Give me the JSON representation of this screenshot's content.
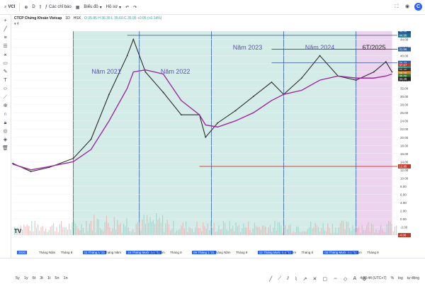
{
  "toolbar": {
    "symbol": "VCI",
    "interval": "D",
    "indicators": "Các chỉ báo",
    "layout_menu": "Biểu đồ",
    "alert_menu": "Hồ sơ"
  },
  "legend": {
    "name": "CTCP Chứng Khoán Vietcap",
    "interval": "1D",
    "exchange": "HSX",
    "ohlc": "O 35.95 H 36.35 L 35.60 C 35.95 +0.05 (+0.14%)",
    "count": "4"
  },
  "bottombar": {
    "ranges": [
      "5y",
      "1y",
      "6t",
      "3t",
      "1t",
      "5n",
      "1n"
    ],
    "time": "4:50:44 (UTC+7)",
    "mode": "%",
    "log": "log",
    "auto": "tự động"
  },
  "chart_data": {
    "type": "line",
    "title": "CTCP Chứng Khoán Vietcap · 1D · HSX",
    "x": [
      "2020-03",
      "2020-06",
      "2020-09",
      "2021-01",
      "2021-04",
      "2021-07",
      "2021-10",
      "2021-11",
      "2022-01",
      "2022-04",
      "2022-07",
      "2022-10",
      "2022-11",
      "2023-01",
      "2023-04",
      "2023-07",
      "2023-10",
      "2023-12",
      "2024-03",
      "2024-06",
      "2024-09",
      "2024-12",
      "2025-03",
      "2025-05",
      "2025-06"
    ],
    "series": [
      {
        "values": [
          13.6,
          11.6,
          12.6,
          14.8,
          19.5,
          30.5,
          40.0,
          44.0,
          36.0,
          31.0,
          25.5,
          25.5,
          20.0,
          23.5,
          26.5,
          30.0,
          33.5,
          30.5,
          34.5,
          40.0,
          35.0,
          34.0,
          36.0,
          38.5,
          36.0
        ]
      },
      {
        "values": [
          13.4,
          12.0,
          12.8,
          14.0,
          17.0,
          24.0,
          32.0,
          36.0,
          36.5,
          35.5,
          29.0,
          25.5,
          23.0,
          22.5,
          24.0,
          26.0,
          29.0,
          30.5,
          31.5,
          34.0,
          35.0,
          34.5,
          34.5,
          35.0,
          35.5
        ]
      }
    ],
    "price_labels": [
      "46.00",
      "44.98",
      "41.56",
      "38.23",
      "37.67",
      "36.80",
      "36.45",
      "35.95",
      "35.70",
      "35.00",
      "34.28",
      "12.85",
      "-4.00"
    ],
    "y_ticks": [
      "46.00",
      "44.00",
      "42.00",
      "40.00",
      "38.00",
      "36.00",
      "34.00",
      "32.00",
      "30.00",
      "28.00",
      "26.00",
      "24.00",
      "22.00",
      "20.00",
      "18.00",
      "16.00",
      "14.00",
      "12.00",
      "10.00",
      "8.00",
      "6.00",
      "4.00",
      "2.00",
      "0.00",
      "-2.00",
      "-4.00"
    ],
    "ylim": [
      -4,
      46
    ],
    "x_labels": [
      "2020",
      "Tháng Năm",
      "Tháng 9",
      "11 Tháng 1 '21",
      "Tháng Năm",
      "16 Tháng Mười hai '21",
      "Tháng Năm",
      "Tháng 9",
      "09 Tháng 1 '21",
      "Tháng Năm",
      "Tháng 9",
      "12 Tháng Mười hai '23",
      "Tháng Năm",
      "Tháng 9",
      "03 Tháng Mười hai '24",
      "Tháng Năm",
      "Tháng 9"
    ],
    "zones": [
      {
        "label": "Năm 2021",
        "from": "2021-01",
        "to": "2021-12",
        "color": "#d4ece7"
      },
      {
        "label": "Năm 2022",
        "from": "2021-12",
        "to": "2022-12",
        "color": "#d4ece7"
      },
      {
        "label": "Năm 2023",
        "from": "2022-12",
        "to": "2023-12",
        "color": "#d4ece7"
      },
      {
        "label": "Năm 2024",
        "from": "2023-12",
        "to": "2024-12",
        "color": "#d4ece7"
      },
      {
        "label": "6T/2025",
        "from": "2024-12",
        "to": "2025-06",
        "color": "#ecd3ee"
      }
    ],
    "hlines": [
      44.98,
      41.56,
      38.23,
      12.85
    ]
  }
}
